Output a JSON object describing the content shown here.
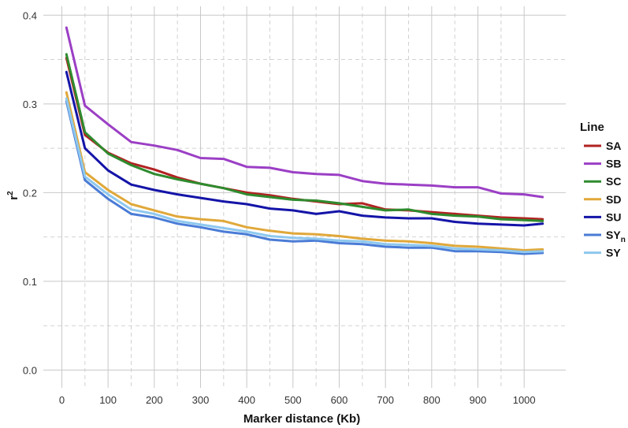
{
  "chart_data": {
    "type": "line",
    "xlabel": "Marker distance (Kb)",
    "ylabel": "r",
    "ylabel_sup": "2",
    "xlim": [
      -40,
      1090
    ],
    "ylim": [
      -0.02,
      0.41
    ],
    "xticks": [
      0,
      100,
      200,
      300,
      400,
      500,
      600,
      700,
      800,
      900,
      1000
    ],
    "xtick_labels": [
      "0",
      "100",
      "200",
      "300",
      "400",
      "500",
      "600",
      "700",
      "800",
      "900",
      "1000"
    ],
    "yticks": [
      0.0,
      0.1,
      0.2,
      0.3,
      0.4
    ],
    "ytick_labels": [
      "0.0",
      "0.1",
      "0.2",
      "0.3",
      "0.4"
    ],
    "grid": true,
    "legend": {
      "title": "Line",
      "position": "right"
    },
    "x": [
      10,
      50,
      100,
      150,
      200,
      250,
      300,
      350,
      400,
      450,
      500,
      550,
      600,
      650,
      700,
      750,
      800,
      850,
      900,
      950,
      1000,
      1040
    ],
    "series": [
      {
        "name": "SA",
        "sub": "",
        "color": "#b22222",
        "values": [
          0.352,
          0.265,
          0.245,
          0.233,
          0.226,
          0.217,
          0.21,
          0.205,
          0.2,
          0.197,
          0.193,
          0.19,
          0.187,
          0.188,
          0.181,
          0.18,
          0.178,
          0.176,
          0.174,
          0.172,
          0.171,
          0.17
        ]
      },
      {
        "name": "SB",
        "sub": "",
        "color": "#9b3fc5",
        "values": [
          0.386,
          0.298,
          0.277,
          0.257,
          0.253,
          0.248,
          0.239,
          0.238,
          0.229,
          0.228,
          0.223,
          0.221,
          0.22,
          0.213,
          0.21,
          0.209,
          0.208,
          0.206,
          0.206,
          0.199,
          0.198,
          0.195
        ]
      },
      {
        "name": "SC",
        "sub": "",
        "color": "#2e8b2e",
        "values": [
          0.356,
          0.268,
          0.244,
          0.231,
          0.221,
          0.215,
          0.21,
          0.205,
          0.198,
          0.195,
          0.192,
          0.191,
          0.188,
          0.184,
          0.18,
          0.181,
          0.176,
          0.174,
          0.173,
          0.17,
          0.169,
          0.168
        ]
      },
      {
        "name": "SD",
        "sub": "",
        "color": "#e0a83a",
        "values": [
          0.313,
          0.223,
          0.203,
          0.187,
          0.18,
          0.173,
          0.17,
          0.168,
          0.161,
          0.157,
          0.154,
          0.153,
          0.151,
          0.148,
          0.146,
          0.145,
          0.143,
          0.14,
          0.139,
          0.137,
          0.135,
          0.136
        ]
      },
      {
        "name": "SU",
        "sub": "",
        "color": "#1414a8",
        "values": [
          0.336,
          0.25,
          0.225,
          0.209,
          0.203,
          0.198,
          0.194,
          0.19,
          0.187,
          0.182,
          0.18,
          0.176,
          0.179,
          0.174,
          0.172,
          0.171,
          0.171,
          0.167,
          0.165,
          0.164,
          0.163,
          0.165
        ]
      },
      {
        "name": "SY",
        "sub": "n",
        "color": "#4a7bd6",
        "values": [
          0.303,
          0.214,
          0.193,
          0.176,
          0.172,
          0.165,
          0.161,
          0.156,
          0.153,
          0.147,
          0.145,
          0.146,
          0.143,
          0.142,
          0.139,
          0.138,
          0.138,
          0.134,
          0.134,
          0.133,
          0.131,
          0.132
        ]
      },
      {
        "name": "SY",
        "sub": "",
        "color": "#8ec8ef",
        "values": [
          0.306,
          0.218,
          0.198,
          0.181,
          0.176,
          0.168,
          0.164,
          0.16,
          0.156,
          0.151,
          0.149,
          0.148,
          0.146,
          0.145,
          0.142,
          0.141,
          0.14,
          0.137,
          0.136,
          0.135,
          0.133,
          0.134
        ]
      }
    ]
  }
}
